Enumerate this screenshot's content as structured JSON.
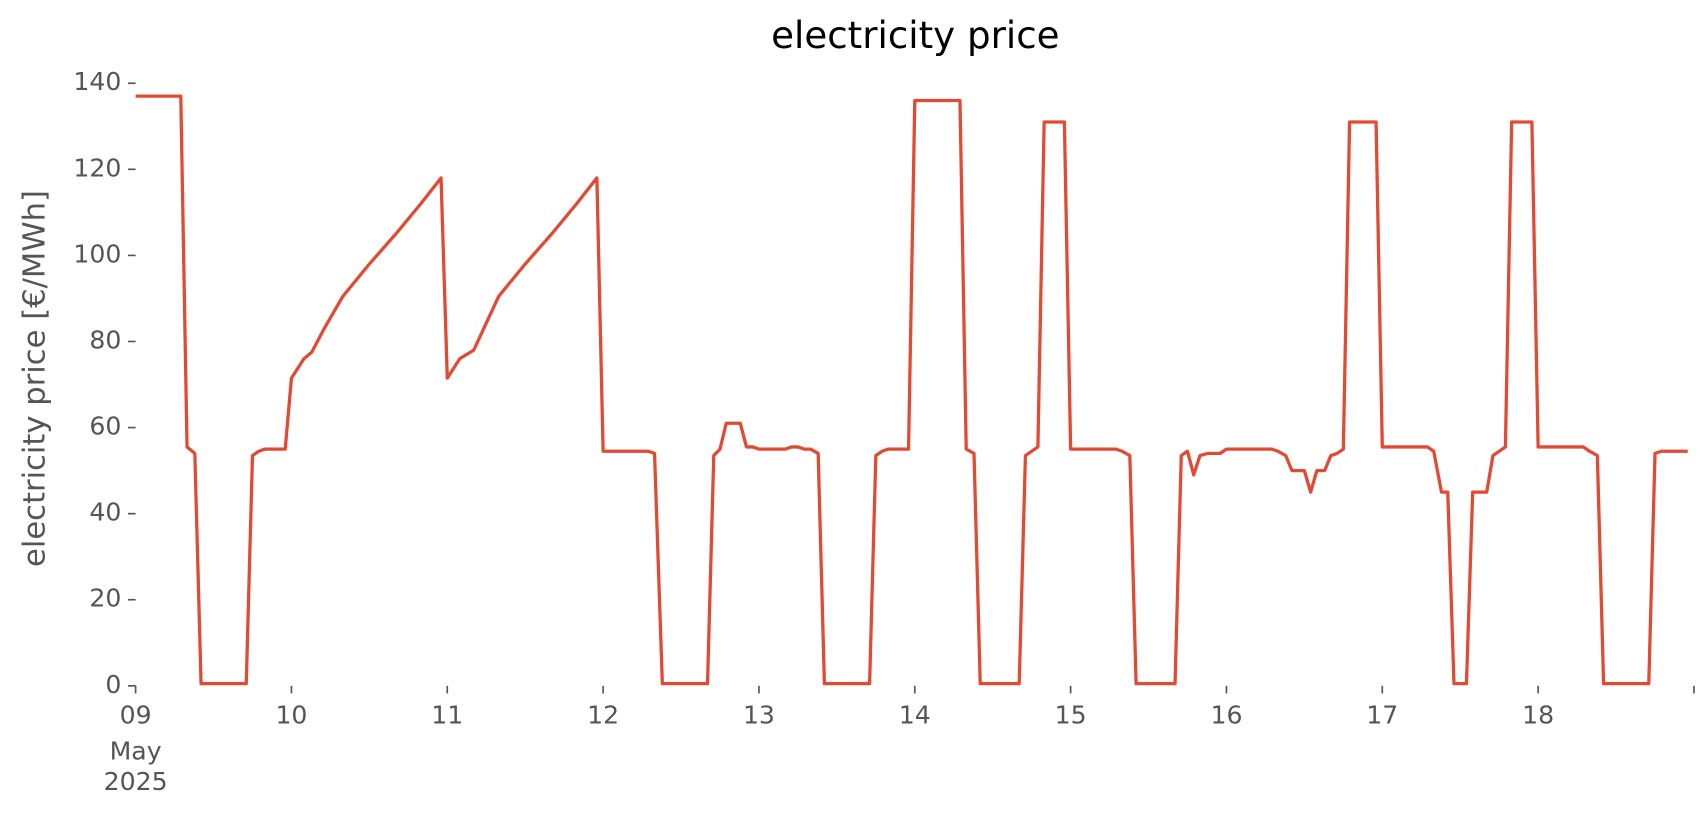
{
  "chart_data": {
    "type": "line",
    "title": "electricity price",
    "ylabel": "electricity price [€/MWh]",
    "x": [
      9.0,
      9.29,
      9.33,
      9.38,
      9.42,
      9.71,
      9.75,
      9.79,
      9.83,
      9.96,
      10.0,
      10.08,
      10.13,
      10.21,
      10.33,
      10.5,
      10.67,
      10.83,
      10.96,
      11.0,
      11.08,
      11.17,
      11.33,
      11.5,
      11.67,
      11.83,
      11.96,
      12.0,
      12.29,
      12.33,
      12.38,
      12.67,
      12.71,
      12.75,
      12.79,
      12.88,
      12.92,
      12.96,
      13.0,
      13.17,
      13.21,
      13.25,
      13.29,
      13.33,
      13.38,
      13.42,
      13.71,
      13.75,
      13.79,
      13.83,
      13.96,
      14.0,
      14.29,
      14.33,
      14.38,
      14.42,
      14.67,
      14.71,
      14.75,
      14.79,
      14.83,
      14.96,
      15.0,
      15.29,
      15.33,
      15.38,
      15.42,
      15.67,
      15.71,
      15.75,
      15.79,
      15.83,
      15.88,
      15.96,
      16.0,
      16.29,
      16.33,
      16.38,
      16.42,
      16.5,
      16.54,
      16.58,
      16.63,
      16.67,
      16.71,
      16.75,
      16.79,
      16.96,
      17.0,
      17.29,
      17.33,
      17.38,
      17.42,
      17.46,
      17.54,
      17.58,
      17.67,
      17.71,
      17.79,
      17.83,
      17.96,
      18.0,
      18.29,
      18.33,
      18.38,
      18.42,
      18.71,
      18.75,
      18.79,
      18.96
    ],
    "series": [
      {
        "name": "electricity price",
        "color": "#e24a33",
        "values": [
          137,
          137,
          55.5,
          54,
          0.5,
          0.5,
          53.5,
          54.5,
          55,
          55,
          71.5,
          76,
          77.5,
          83,
          90.5,
          98,
          105,
          112,
          118,
          71.5,
          76,
          78,
          90.5,
          98,
          105,
          112,
          118,
          54.5,
          54.5,
          54,
          0.5,
          0.5,
          53.5,
          55,
          61,
          61,
          55.5,
          55.5,
          55,
          55,
          55.5,
          55.5,
          55,
          55,
          54,
          0.5,
          0.5,
          53.5,
          54.5,
          55,
          55,
          136,
          136,
          55,
          54,
          0.5,
          0.5,
          53.5,
          54.5,
          55.5,
          131,
          131,
          55,
          55,
          54.5,
          53.5,
          0.5,
          0.5,
          53.5,
          54.5,
          49,
          53.5,
          54,
          54,
          55,
          55,
          54.5,
          53.5,
          50,
          50,
          45,
          50,
          50,
          53.5,
          54,
          55,
          131,
          131,
          55.5,
          55.5,
          54.5,
          45,
          45,
          0.5,
          0.5,
          45,
          45,
          53.5,
          55.5,
          131,
          131,
          55.5,
          55.5,
          54.5,
          53.5,
          0.5,
          0.5,
          54,
          54.5,
          54.5
        ]
      }
    ],
    "xlim": [
      9,
      19
    ],
    "xticks": [
      {
        "value": 9,
        "label": "09"
      },
      10,
      11,
      12,
      13,
      14,
      15,
      16,
      17,
      18
    ],
    "xtick_sublabels": [
      "May",
      "2025"
    ],
    "ylim": [
      0,
      140
    ],
    "yticks": [
      0,
      20,
      40,
      60,
      80,
      100,
      120,
      140
    ],
    "grid": false
  }
}
